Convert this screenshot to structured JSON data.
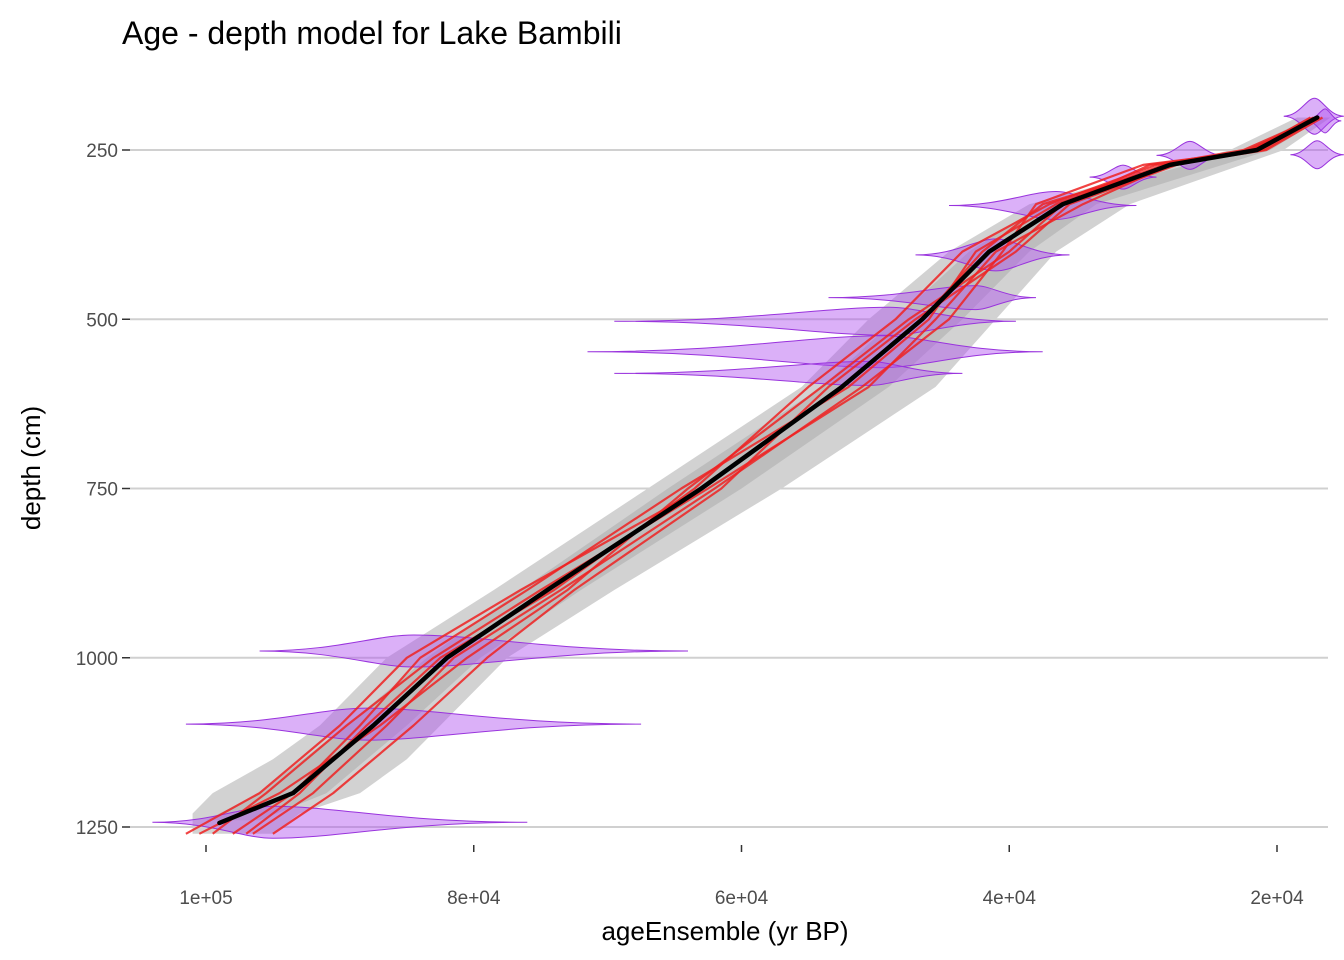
{
  "chart_data": {
    "type": "line",
    "title": "Age - depth model for Lake Bambili",
    "xlabel": "ageEnsemble (yr BP)",
    "ylabel": "depth (cm)",
    "x_reversed": true,
    "y_reversed": true,
    "xlim": [
      108000,
      16000
    ],
    "ylim": [
      175,
      1310
    ],
    "x_ticks": [
      {
        "value": 100000,
        "label": "1e+05"
      },
      {
        "value": 80000,
        "label": "8e+04"
      },
      {
        "value": 60000,
        "label": "6e+04"
      },
      {
        "value": 40000,
        "label": "4e+04"
      },
      {
        "value": 20000,
        "label": "2e+04"
      }
    ],
    "y_ticks": [
      {
        "value": 250,
        "label": "250"
      },
      {
        "value": 500,
        "label": "500"
      },
      {
        "value": 750,
        "label": "750"
      },
      {
        "value": 1000,
        "label": "1000"
      },
      {
        "value": 1250,
        "label": "1250"
      }
    ],
    "horizontal_grid": true,
    "vertical_grid": false,
    "legend": "none",
    "colors": {
      "outer_band": "#d2d2d2",
      "inner_band": "#b4b4b4",
      "median": "#000000",
      "ensemble": "#ee2222",
      "dates_fill": "#b050f0",
      "dates_stroke": "#9933dd"
    },
    "median": {
      "depth": [
        202,
        250,
        272,
        330,
        400,
        500,
        600,
        750,
        900,
        1000,
        1100,
        1200,
        1244
      ],
      "age": [
        17000,
        21500,
        28000,
        36000,
        41500,
        46500,
        52500,
        63000,
        74500,
        82000,
        87500,
        93500,
        99000
      ]
    },
    "band_outer": {
      "depth": [
        202,
        250,
        330,
        400,
        500,
        600,
        750,
        900,
        1000,
        1100,
        1150,
        1200,
        1230,
        1260
      ],
      "age_low": [
        16000,
        19500,
        31000,
        36500,
        41000,
        45500,
        57000,
        69500,
        77500,
        82500,
        85000,
        88500,
        93000,
        95000
      ],
      "age_high": [
        18500,
        23500,
        38500,
        44500,
        50500,
        55500,
        67000,
        78500,
        86500,
        91500,
        95000,
        99500,
        101000,
        101000
      ]
    },
    "band_inner": {
      "depth": [
        205,
        250,
        330,
        400,
        500,
        600,
        750,
        900,
        1000,
        1100,
        1200,
        1240
      ],
      "age_low": [
        16800,
        20500,
        33500,
        38500,
        43500,
        49000,
        60000,
        72000,
        79500,
        85000,
        91000,
        96000
      ],
      "age_high": [
        17800,
        22500,
        37500,
        43000,
        48500,
        54000,
        65500,
        76500,
        83500,
        89500,
        96000,
        100000
      ]
    },
    "ensemble_members": [
      {
        "depth": [
          202,
          250,
          272,
          330,
          400,
          500,
          600,
          750,
          900,
          1000,
          1100,
          1200,
          1260
        ],
        "age": [
          17200,
          22000,
          28500,
          36500,
          42500,
          46000,
          52000,
          64500,
          76000,
          84000,
          88500,
          93500,
          98000
        ]
      },
      {
        "depth": [
          202,
          250,
          272,
          330,
          400,
          500,
          600,
          750,
          900,
          1000,
          1100,
          1200,
          1260
        ],
        "age": [
          16800,
          21000,
          30000,
          38000,
          40500,
          44500,
          51000,
          62000,
          73500,
          81500,
          86500,
          92000,
          96500
        ]
      },
      {
        "depth": [
          202,
          250,
          272,
          330,
          400,
          500,
          600,
          750,
          900,
          1000,
          1100,
          1200,
          1260
        ],
        "age": [
          17500,
          21800,
          27500,
          35500,
          39500,
          47000,
          53500,
          61500,
          72500,
          79000,
          84500,
          90500,
          95000
        ]
      },
      {
        "depth": [
          202,
          250,
          272,
          330,
          400,
          500,
          600,
          750,
          900,
          1000,
          1100,
          1200,
          1260
        ],
        "age": [
          17000,
          22500,
          29000,
          37000,
          43500,
          48500,
          55000,
          63500,
          74000,
          82500,
          88000,
          93000,
          97000
        ]
      },
      {
        "depth": [
          202,
          250,
          272,
          330,
          400,
          500,
          600,
          750,
          900,
          1000,
          1100,
          1200,
          1260
        ],
        "age": [
          16600,
          20800,
          28000,
          34500,
          41000,
          45500,
          50500,
          62500,
          75000,
          83000,
          89500,
          95500,
          99500
        ]
      },
      {
        "depth": [
          202,
          250,
          272,
          330,
          400,
          500,
          600,
          750,
          900,
          1000,
          1100,
          1200,
          1260
        ],
        "age": [
          17300,
          21300,
          29500,
          36000,
          40000,
          47500,
          54000,
          64000,
          73000,
          80500,
          87000,
          94500,
          100500
        ]
      },
      {
        "depth": [
          202,
          250,
          272,
          330,
          400,
          500,
          600,
          750,
          900,
          1000,
          1100,
          1200,
          1260
        ],
        "age": [
          16900,
          22200,
          27800,
          37500,
          42000,
          46500,
          52500,
          63000,
          76500,
          85000,
          90000,
          96000,
          101500
        ]
      }
    ],
    "dated_samples": [
      {
        "depth": 200,
        "age": 17200,
        "age_min": 15000,
        "age_max": 19500,
        "peak_height": 18
      },
      {
        "depth": 207,
        "age": 16400,
        "age_min": 15200,
        "age_max": 17800,
        "peak_height": 12
      },
      {
        "depth": 257,
        "age": 17000,
        "age_min": 15000,
        "age_max": 19000,
        "peak_height": 14
      },
      {
        "depth": 258,
        "age": 26500,
        "age_min": 24000,
        "age_max": 29000,
        "peak_height": 14
      },
      {
        "depth": 290,
        "age": 31500,
        "age_min": 29000,
        "age_max": 34000,
        "peak_height": 12
      },
      {
        "depth": 332,
        "age": 36500,
        "age_min": 30500,
        "age_max": 44500,
        "peak_height": 14
      },
      {
        "depth": 405,
        "age": 41000,
        "age_min": 35500,
        "age_max": 47000,
        "peak_height": 16
      },
      {
        "depth": 468,
        "age": 42500,
        "age_min": 38000,
        "age_max": 53500,
        "peak_height": 12
      },
      {
        "depth": 503,
        "age": 49000,
        "age_min": 39500,
        "age_max": 69500,
        "peak_height": 14
      },
      {
        "depth": 548,
        "age": 49500,
        "age_min": 37500,
        "age_max": 71500,
        "peak_height": 16
      },
      {
        "depth": 580,
        "age": 50500,
        "age_min": 43500,
        "age_max": 69500,
        "peak_height": 12
      },
      {
        "depth": 990,
        "age": 84500,
        "age_min": 64000,
        "age_max": 96000,
        "peak_height": 16
      },
      {
        "depth": 1098,
        "age": 88000,
        "age_min": 67500,
        "age_max": 101500,
        "peak_height": 16
      },
      {
        "depth": 1243,
        "age": 95000,
        "age_min": 76000,
        "age_max": 104000,
        "peak_height": 16
      }
    ]
  }
}
